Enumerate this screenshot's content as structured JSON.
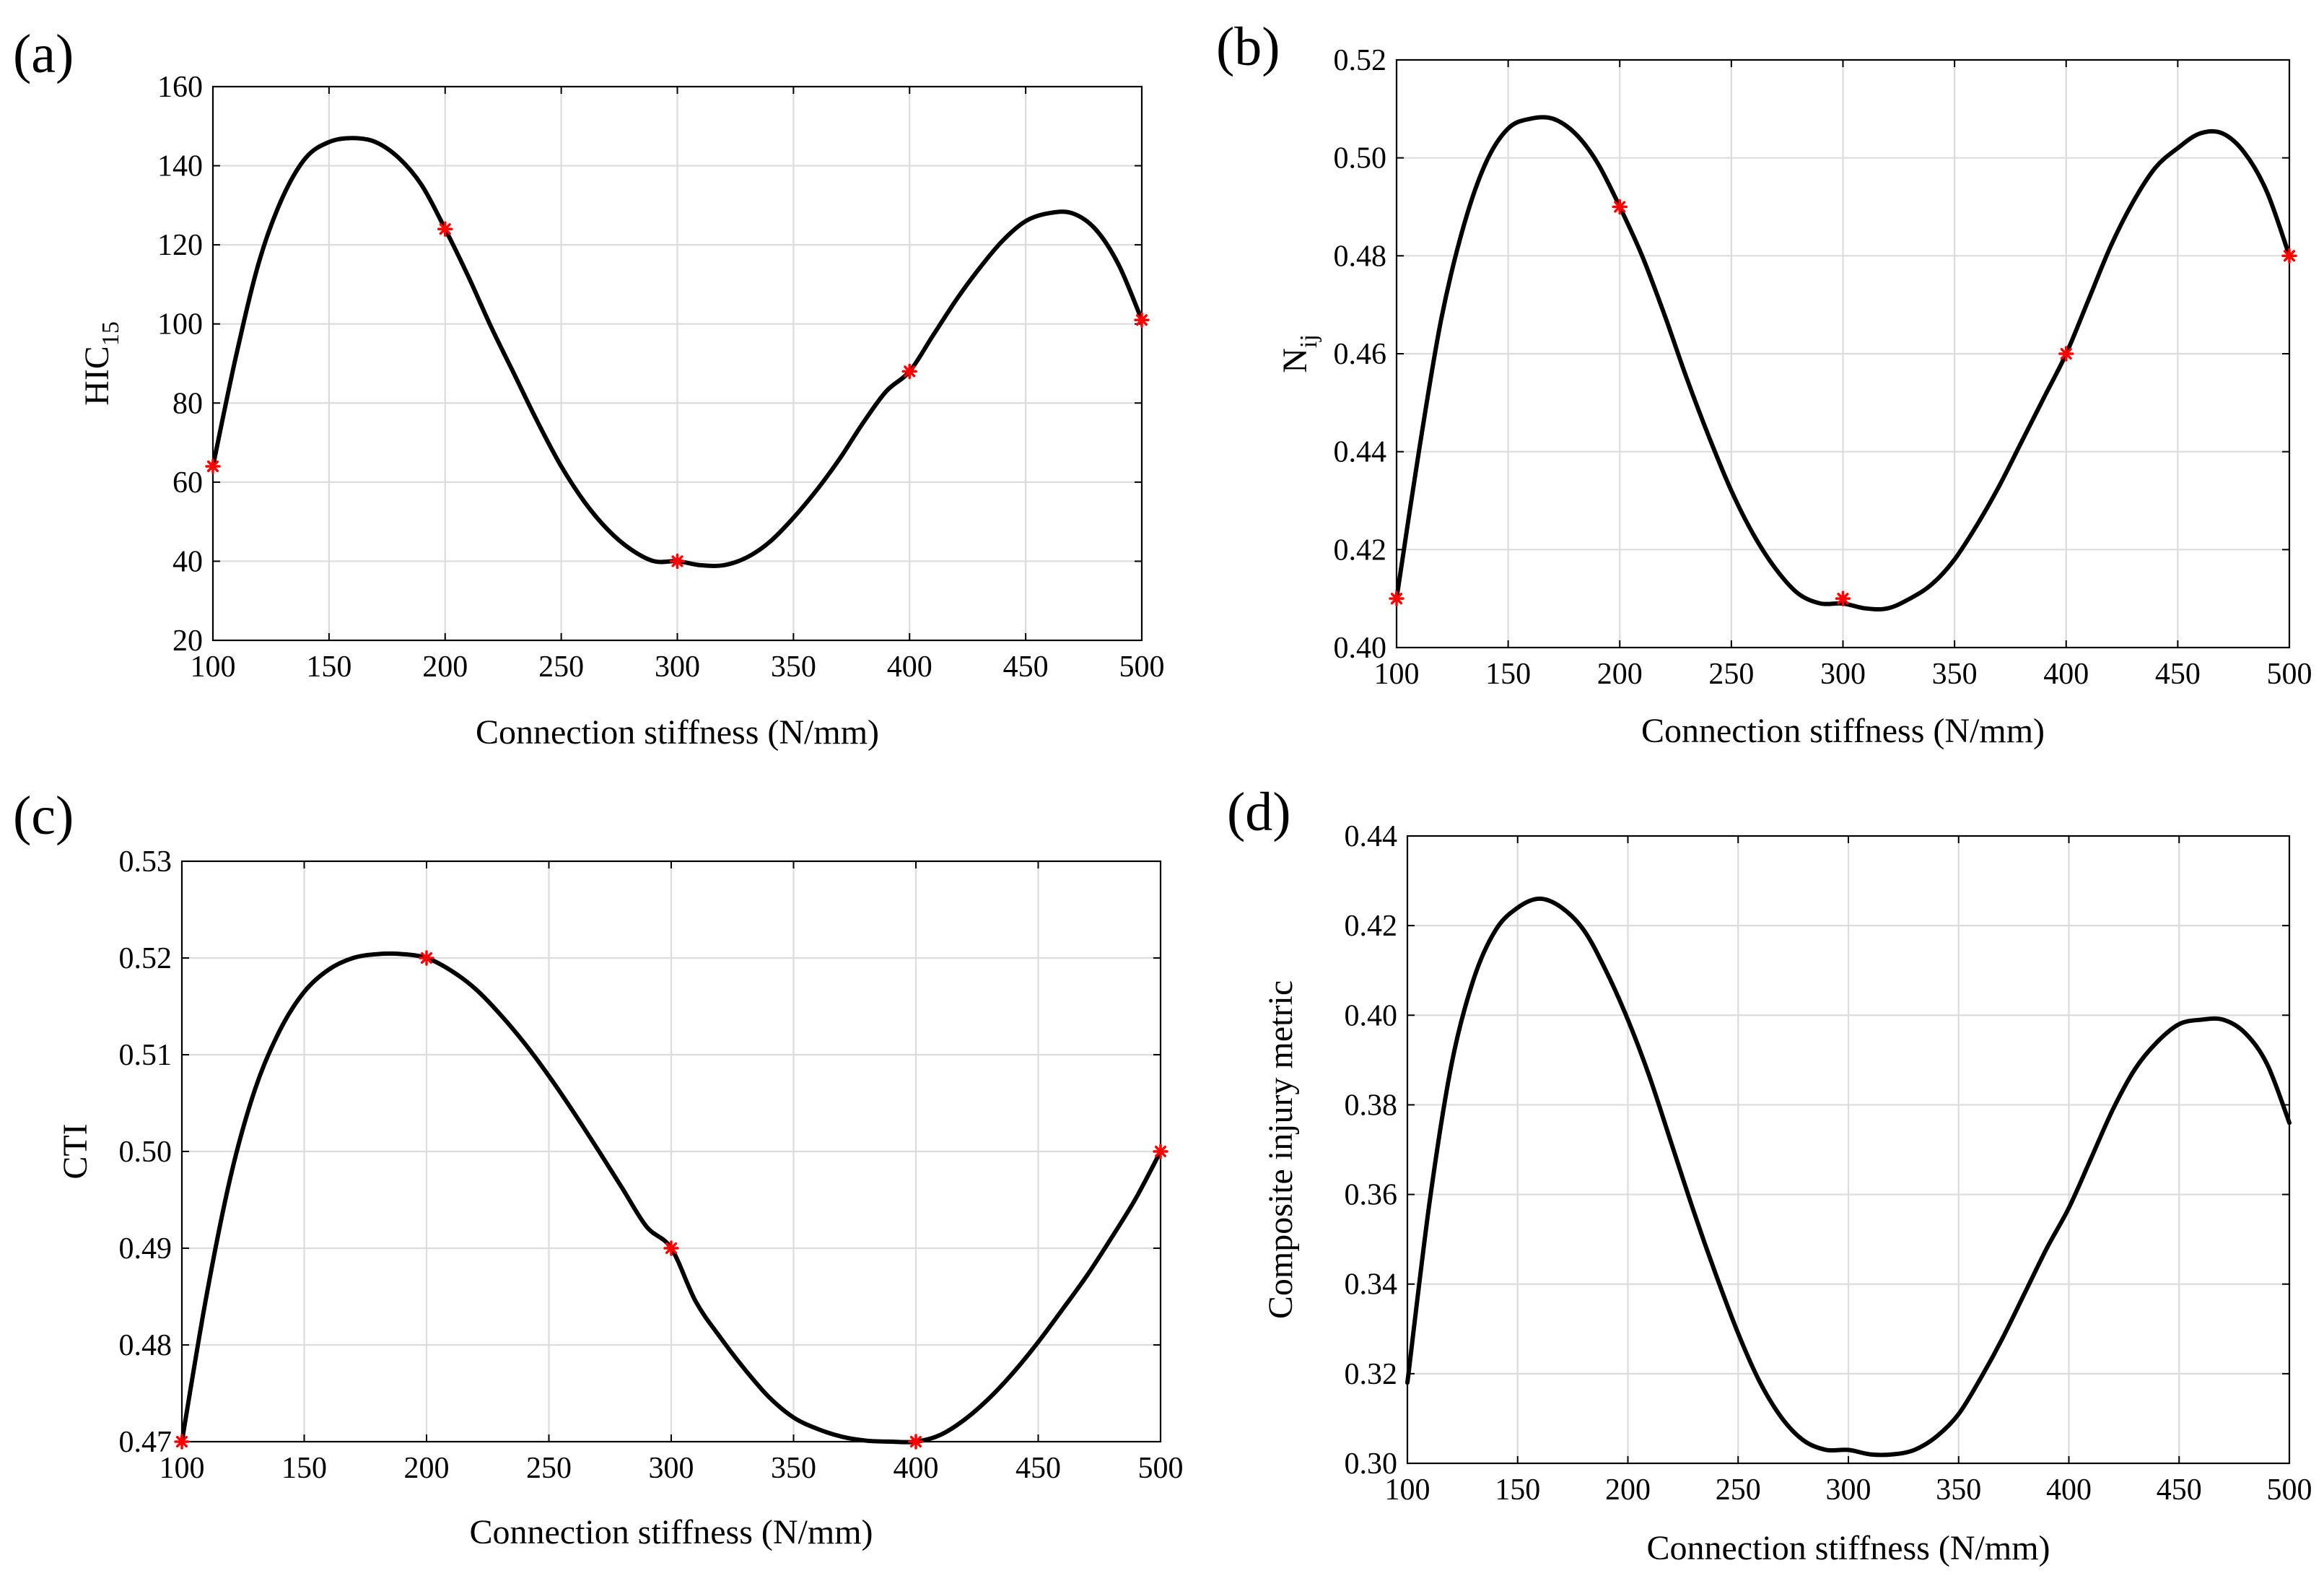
{
  "colors": {
    "curve": "#000000",
    "marker": "#ff0000",
    "grid": "#dcdcdc"
  },
  "chart_data": [
    {
      "id": "a",
      "type": "line",
      "panel_label": "(a)",
      "ylabel_main": "HIC",
      "ylabel_sub": "15",
      "xlabel": "Connection stiffness (N/mm)",
      "xlim": [
        100,
        500
      ],
      "ylim": [
        20,
        160
      ],
      "xticks": [
        100,
        150,
        200,
        250,
        300,
        350,
        400,
        450,
        500
      ],
      "xtick_labels": [
        "100",
        "150",
        "200",
        "250",
        "300",
        "350",
        "400",
        "450",
        "500"
      ],
      "yticks": [
        20,
        40,
        60,
        80,
        100,
        120,
        140,
        160
      ],
      "ytick_labels": [
        "20",
        "40",
        "60",
        "80",
        "100",
        "120",
        "140",
        "160"
      ],
      "curve": {
        "x": [
          100,
          110,
          120,
          130,
          140,
          150,
          160,
          170,
          180,
          190,
          200,
          210,
          220,
          230,
          240,
          250,
          260,
          270,
          280,
          290,
          300,
          310,
          320,
          330,
          340,
          350,
          360,
          370,
          380,
          390,
          400,
          410,
          420,
          430,
          440,
          450,
          460,
          470,
          480,
          490,
          500
        ],
        "y": [
          64,
          92,
          116,
          132,
          142,
          146,
          147,
          146,
          142,
          135,
          124,
          112,
          99,
          87,
          75,
          64,
          55,
          48,
          43,
          40,
          40,
          39,
          39,
          41,
          45,
          51,
          58,
          66,
          75,
          83,
          88,
          97,
          106,
          114,
          121,
          126,
          128,
          128,
          124,
          115,
          101
        ]
      },
      "markers": {
        "x": [
          100,
          200,
          300,
          400,
          500
        ],
        "y": [
          64,
          124,
          40,
          88,
          101
        ]
      }
    },
    {
      "id": "b",
      "type": "line",
      "panel_label": "(b)",
      "ylabel_main": "N",
      "ylabel_sub": "ij",
      "xlabel": "Connection stiffness (N/mm)",
      "xlim": [
        100,
        500
      ],
      "ylim": [
        0.4,
        0.52
      ],
      "xticks": [
        100,
        150,
        200,
        250,
        300,
        350,
        400,
        450,
        500
      ],
      "xtick_labels": [
        "100",
        "150",
        "200",
        "250",
        "300",
        "350",
        "400",
        "450",
        "500"
      ],
      "yticks": [
        0.4,
        0.42,
        0.44,
        0.46,
        0.48,
        0.5,
        0.52
      ],
      "ytick_labels": [
        "0.40",
        "0.42",
        "0.44",
        "0.46",
        "0.48",
        "0.50",
        "0.52"
      ],
      "curve": {
        "x": [
          100,
          110,
          120,
          130,
          140,
          150,
          160,
          170,
          180,
          190,
          200,
          210,
          220,
          230,
          240,
          250,
          260,
          270,
          280,
          290,
          300,
          310,
          320,
          330,
          340,
          350,
          360,
          370,
          380,
          390,
          400,
          410,
          420,
          430,
          440,
          450,
          460,
          470,
          480,
          490,
          500
        ],
        "y": [
          0.41,
          0.44,
          0.467,
          0.486,
          0.499,
          0.506,
          0.508,
          0.508,
          0.505,
          0.499,
          0.49,
          0.48,
          0.468,
          0.455,
          0.443,
          0.432,
          0.423,
          0.416,
          0.411,
          0.409,
          0.409,
          0.408,
          0.408,
          0.41,
          0.413,
          0.418,
          0.425,
          0.433,
          0.442,
          0.451,
          0.46,
          0.471,
          0.482,
          0.491,
          0.498,
          0.502,
          0.505,
          0.505,
          0.501,
          0.493,
          0.48
        ]
      },
      "markers": {
        "x": [
          100,
          200,
          300,
          400,
          500
        ],
        "y": [
          0.41,
          0.49,
          0.41,
          0.46,
          0.48
        ]
      }
    },
    {
      "id": "c",
      "type": "line",
      "panel_label": "(c)",
      "ylabel_main": "CTI",
      "ylabel_sub": "",
      "xlabel": "Connection stiffness (N/mm)",
      "xlim": [
        100,
        500
      ],
      "ylim": [
        0.47,
        0.53
      ],
      "xticks": [
        100,
        150,
        200,
        250,
        300,
        350,
        400,
        450,
        500
      ],
      "xtick_labels": [
        "100",
        "150",
        "200",
        "250",
        "300",
        "350",
        "400",
        "450",
        "500"
      ],
      "yticks": [
        0.47,
        0.48,
        0.49,
        0.5,
        0.51,
        0.52,
        0.53
      ],
      "ytick_labels": [
        "0.47",
        "0.48",
        "0.49",
        "0.50",
        "0.51",
        "0.52",
        "0.53"
      ],
      "curve": {
        "x": [
          100,
          110,
          120,
          130,
          140,
          150,
          160,
          170,
          180,
          190,
          200,
          210,
          220,
          230,
          240,
          250,
          260,
          270,
          280,
          290,
          300,
          310,
          320,
          330,
          340,
          350,
          360,
          370,
          380,
          390,
          400,
          410,
          420,
          430,
          440,
          450,
          460,
          470,
          480,
          490,
          500
        ],
        "y": [
          0.47,
          0.485,
          0.4975,
          0.5065,
          0.5125,
          0.5165,
          0.5188,
          0.52,
          0.5204,
          0.5204,
          0.52,
          0.5187,
          0.5168,
          0.5142,
          0.5112,
          0.5078,
          0.5041,
          0.5002,
          0.4962,
          0.4922,
          0.49,
          0.4845,
          0.4808,
          0.4775,
          0.4746,
          0.4725,
          0.4713,
          0.4705,
          0.4701,
          0.47,
          0.47,
          0.4707,
          0.4723,
          0.4745,
          0.4772,
          0.4803,
          0.4837,
          0.4872,
          0.4911,
          0.4952,
          0.5
        ]
      },
      "markers": {
        "x": [
          100,
          200,
          300,
          400,
          500
        ],
        "y": [
          0.47,
          0.52,
          0.49,
          0.47,
          0.5
        ]
      }
    },
    {
      "id": "d",
      "type": "line",
      "panel_label": "(d)",
      "ylabel_main": "Composite injury metric",
      "ylabel_sub": "",
      "xlabel": "Connection stiffness (N/mm)",
      "xlim": [
        100,
        500
      ],
      "ylim": [
        0.3,
        0.44
      ],
      "xticks": [
        100,
        150,
        200,
        250,
        300,
        350,
        400,
        450,
        500
      ],
      "xtick_labels": [
        "100",
        "150",
        "200",
        "250",
        "300",
        "350",
        "400",
        "450",
        "500"
      ],
      "yticks": [
        0.3,
        0.32,
        0.34,
        0.36,
        0.38,
        0.4,
        0.42,
        0.44
      ],
      "ytick_labels": [
        "0.30",
        "0.32",
        "0.34",
        "0.36",
        "0.38",
        "0.40",
        "0.42",
        "0.44"
      ],
      "curve": {
        "x": [
          100,
          110,
          120,
          130,
          140,
          150,
          160,
          170,
          180,
          190,
          200,
          210,
          220,
          230,
          240,
          250,
          260,
          270,
          280,
          290,
          300,
          310,
          320,
          330,
          340,
          350,
          360,
          370,
          380,
          390,
          400,
          410,
          420,
          430,
          440,
          450,
          460,
          470,
          480,
          490,
          500
        ],
        "y": [
          0.318,
          0.358,
          0.389,
          0.408,
          0.419,
          0.424,
          0.426,
          0.424,
          0.419,
          0.41,
          0.399,
          0.386,
          0.371,
          0.356,
          0.342,
          0.329,
          0.318,
          0.31,
          0.305,
          0.303,
          0.303,
          0.302,
          0.302,
          0.303,
          0.306,
          0.311,
          0.319,
          0.328,
          0.338,
          0.348,
          0.357,
          0.368,
          0.379,
          0.388,
          0.394,
          0.398,
          0.399,
          0.399,
          0.396,
          0.389,
          0.376
        ]
      },
      "markers": {
        "x": [],
        "y": []
      }
    }
  ]
}
